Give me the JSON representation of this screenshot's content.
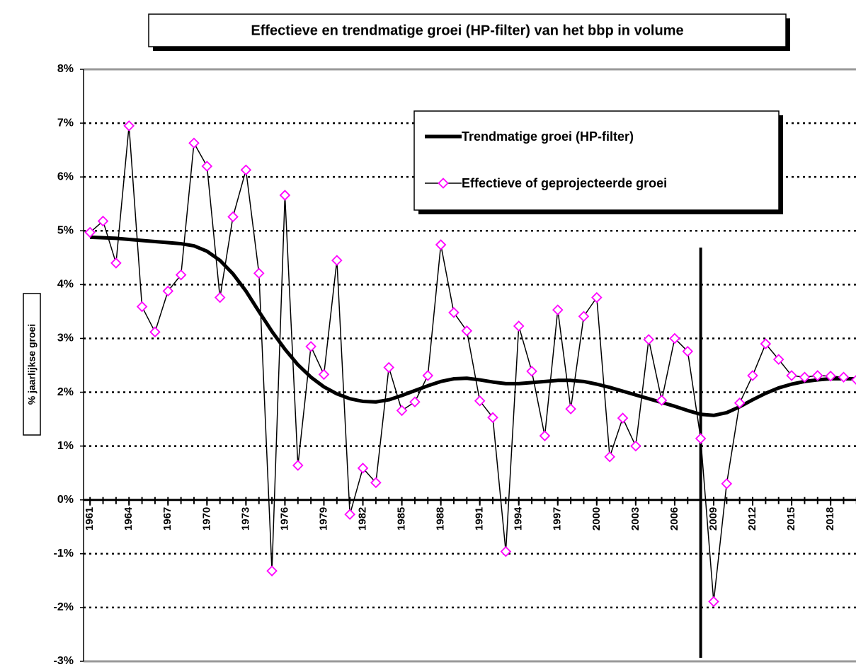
{
  "chart_data": {
    "type": "line",
    "title": "Effectieve en trendmatige groei (HP-filter) van het bbp in volume",
    "y_label": "% jaarlijkse groei",
    "x": [
      1961,
      1962,
      1963,
      1964,
      1965,
      1966,
      1967,
      1968,
      1969,
      1970,
      1971,
      1972,
      1973,
      1974,
      1975,
      1976,
      1977,
      1978,
      1979,
      1980,
      1981,
      1982,
      1983,
      1984,
      1985,
      1986,
      1987,
      1988,
      1989,
      1990,
      1991,
      1992,
      1993,
      1994,
      1995,
      1996,
      1997,
      1998,
      1999,
      2000,
      2001,
      2002,
      2003,
      2004,
      2005,
      2006,
      2007,
      2008,
      2009,
      2010,
      2011,
      2012,
      2013,
      2014,
      2015,
      2016,
      2017,
      2018,
      2019,
      2020
    ],
    "series": [
      {
        "name": "Trendmatige groei (HP-filter)",
        "color": "#000000",
        "marker": false,
        "values": [
          4.88,
          4.87,
          4.86,
          4.84,
          4.82,
          4.8,
          4.78,
          4.76,
          4.72,
          4.62,
          4.45,
          4.2,
          3.88,
          3.5,
          3.13,
          2.8,
          2.51,
          2.28,
          2.1,
          1.97,
          1.88,
          1.83,
          1.82,
          1.86,
          1.94,
          2.03,
          2.12,
          2.2,
          2.25,
          2.26,
          2.23,
          2.19,
          2.16,
          2.16,
          2.18,
          2.2,
          2.22,
          2.22,
          2.2,
          2.15,
          2.09,
          2.02,
          1.95,
          1.88,
          1.81,
          1.74,
          1.66,
          1.59,
          1.57,
          1.62,
          1.73,
          1.86,
          1.98,
          2.08,
          2.15,
          2.2,
          2.23,
          2.25,
          2.25,
          2.25
        ]
      },
      {
        "name": "Effectieve of geprojecteerde groei",
        "color": "#000000",
        "marker": true,
        "marker_color": "#ff00ff",
        "values": [
          4.97,
          5.18,
          4.4,
          6.95,
          3.59,
          3.12,
          3.88,
          4.18,
          6.63,
          6.2,
          3.76,
          5.26,
          6.13,
          4.21,
          -1.32,
          5.66,
          0.64,
          2.85,
          2.33,
          4.45,
          -0.27,
          0.59,
          0.32,
          2.46,
          1.66,
          1.82,
          2.31,
          4.74,
          3.48,
          3.14,
          1.84,
          1.53,
          -0.96,
          3.23,
          2.39,
          1.19,
          3.53,
          1.69,
          3.41,
          3.76,
          0.8,
          1.52,
          1.0,
          2.98,
          1.85,
          3.0,
          2.76,
          1.14,
          -1.89,
          0.3,
          1.8,
          2.31,
          2.9,
          2.61,
          2.31,
          2.28,
          2.31,
          2.3,
          2.28,
          2.23
        ]
      }
    ],
    "xlim": [
      1960.5,
      2020.5
    ],
    "xticks": [
      1961,
      1964,
      1967,
      1970,
      1973,
      1976,
      1979,
      1982,
      1985,
      1988,
      1991,
      1994,
      1997,
      2000,
      2003,
      2006,
      2009,
      2012,
      2015,
      2018
    ],
    "ylim": [
      -3,
      8
    ],
    "yticks": [
      {
        "value": -3,
        "label": "-3%"
      },
      {
        "value": -2,
        "label": "-2%"
      },
      {
        "value": -1,
        "label": "-1%"
      },
      {
        "value": 0,
        "label": "0%"
      },
      {
        "value": 1,
        "label": "1%"
      },
      {
        "value": 2,
        "label": "2%"
      },
      {
        "value": 3,
        "label": "3%"
      },
      {
        "value": 4,
        "label": "4%"
      },
      {
        "value": 5,
        "label": "5%"
      },
      {
        "value": 6,
        "label": "6%"
      },
      {
        "value": 7,
        "label": "7%"
      },
      {
        "value": 8,
        "label": "8%"
      }
    ],
    "grid": true,
    "vertical_line_x": 2008,
    "legend": "upper right"
  }
}
